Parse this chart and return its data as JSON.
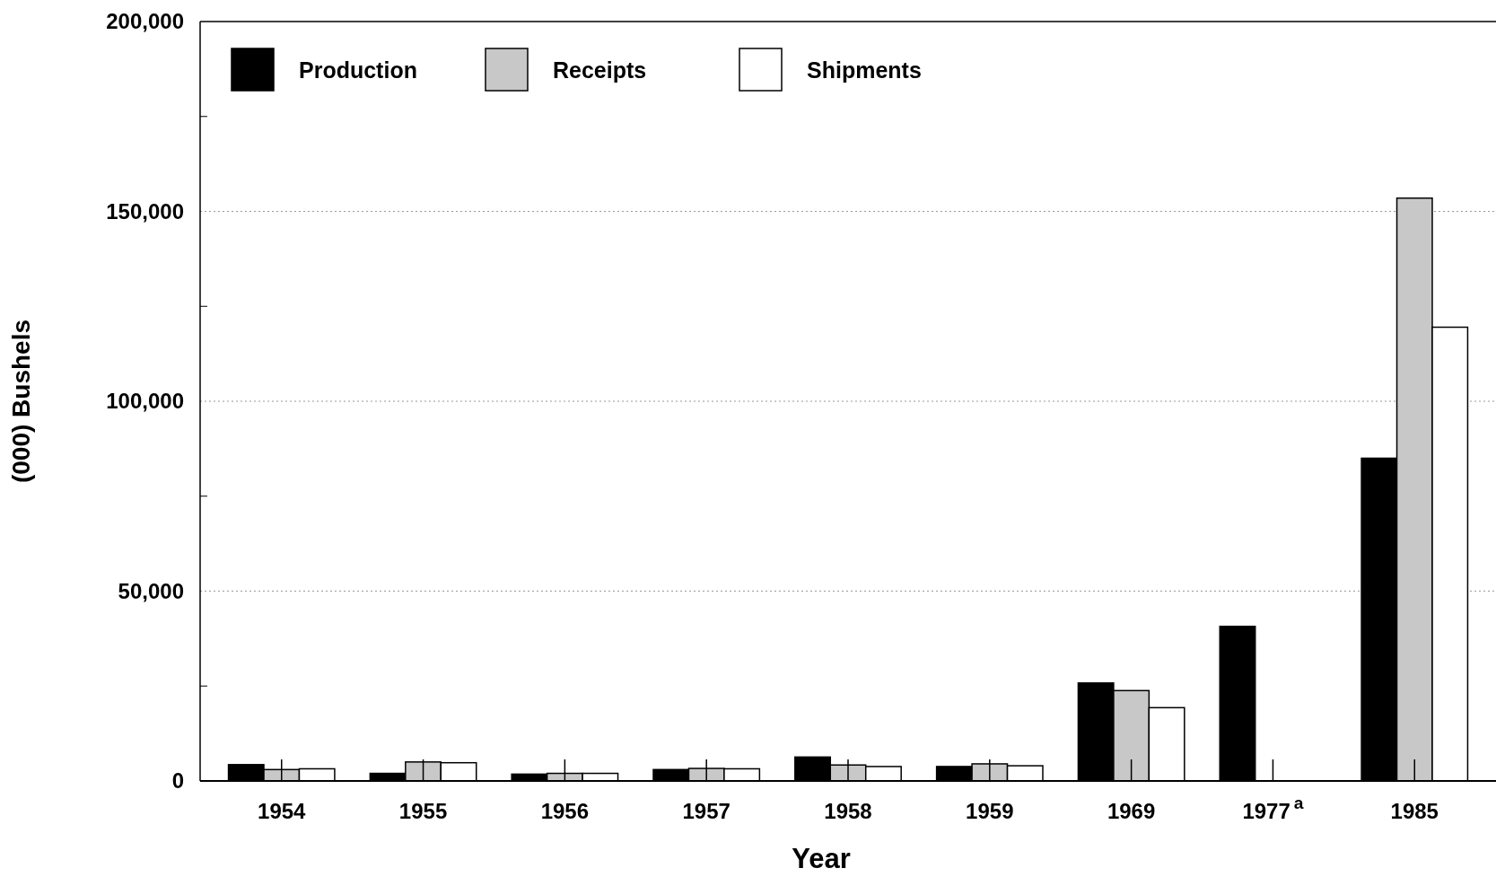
{
  "chart_data": {
    "type": "bar",
    "xlabel": "Year",
    "ylabel": "(000) Bushels",
    "categories": [
      "1954",
      "1955",
      "1956",
      "1957",
      "1958",
      "1959",
      "1969",
      "1977$^{a}$",
      "1985"
    ],
    "series": [
      {
        "name": "Production",
        "color": "#000000",
        "values": [
          4300,
          2000,
          1800,
          3000,
          6300,
          3800,
          25800,
          40700,
          85000
        ]
      },
      {
        "name": "Receipts",
        "color": "#c8c8c8",
        "values": [
          3000,
          5000,
          2000,
          3300,
          4200,
          4500,
          23800,
          null,
          153500
        ]
      },
      {
        "name": "Shipments",
        "color": "#ffffff",
        "values": [
          3200,
          4800,
          2000,
          3200,
          3800,
          4000,
          19300,
          null,
          119500
        ]
      }
    ],
    "ylim": [
      0,
      200000
    ],
    "yticks": [
      0,
      {
        "value": 25000,
        "label": null
      },
      {
        "value": 50000,
        "label": "50,000"
      },
      {
        "value": 75000,
        "label": null
      },
      {
        "value": 100000,
        "label": "100,000"
      },
      {
        "value": 125000,
        "label": null
      },
      {
        "value": 150000,
        "label": "150,000"
      },
      {
        "value": 175000,
        "label": null
      },
      {
        "value": 200000,
        "label": "200,000"
      }
    ],
    "grid": "y",
    "legend": "top left"
  }
}
